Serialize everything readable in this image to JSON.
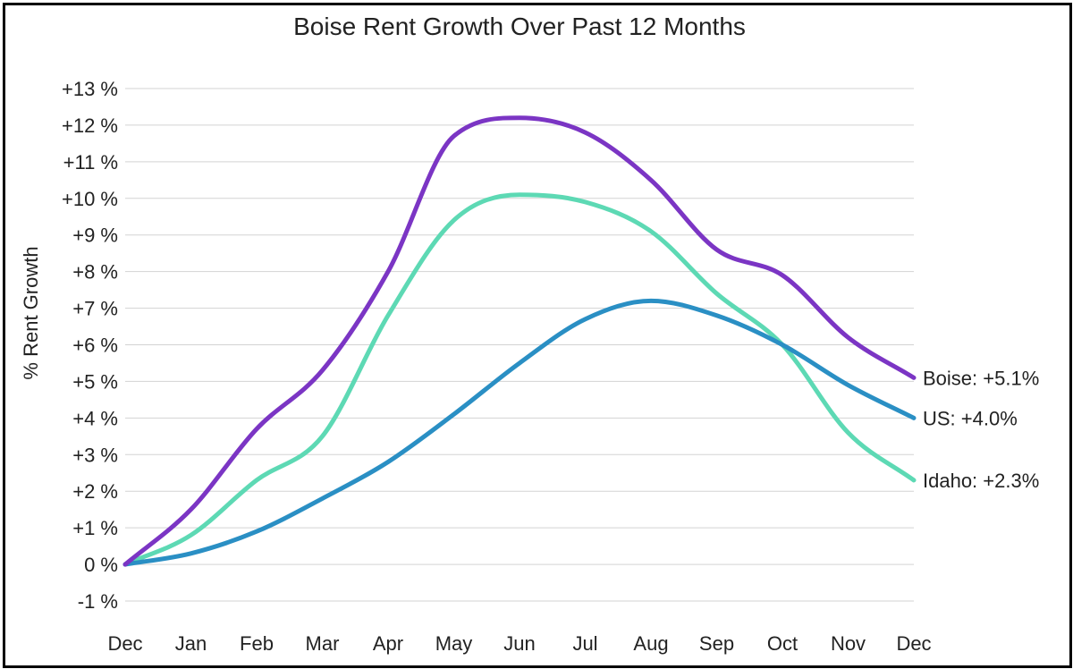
{
  "chart_data": {
    "type": "line",
    "title": "Boise Rent Growth Over Past 12 Months",
    "ylabel": "% Rent Growth",
    "xlabel": "",
    "categories": [
      "Dec",
      "Jan",
      "Feb",
      "Mar",
      "Apr",
      "May",
      "Jun",
      "Jul",
      "Aug",
      "Sep",
      "Oct",
      "Nov",
      "Dec"
    ],
    "ylim": [
      -1,
      13
    ],
    "yticks": [
      {
        "value": 13,
        "label": "+13 %"
      },
      {
        "value": 12,
        "label": "+12 %"
      },
      {
        "value": 11,
        "label": "+11 %"
      },
      {
        "value": 10,
        "label": "+10 %"
      },
      {
        "value": 9,
        "label": "+9 %"
      },
      {
        "value": 8,
        "label": "+8 %"
      },
      {
        "value": 7,
        "label": "+7 %"
      },
      {
        "value": 6,
        "label": "+6 %"
      },
      {
        "value": 5,
        "label": "+5 %"
      },
      {
        "value": 4,
        "label": "+4 %"
      },
      {
        "value": 3,
        "label": "+3 %"
      },
      {
        "value": 2,
        "label": "+2 %"
      },
      {
        "value": 1,
        "label": "+1 %"
      },
      {
        "value": 0,
        "label": "0 %"
      },
      {
        "value": -1,
        "label": "-1 %"
      }
    ],
    "grid": true,
    "legend": "end-of-line labels",
    "series": [
      {
        "name": "Boise",
        "end_label": "Boise: +5.1%",
        "color": "#7b35c4",
        "values": [
          0,
          1.5,
          3.7,
          5.3,
          8.0,
          11.7,
          12.2,
          11.8,
          10.5,
          8.6,
          7.9,
          6.2,
          5.1
        ]
      },
      {
        "name": "US",
        "end_label": "US: +4.0%",
        "color": "#2a8fc4",
        "values": [
          0,
          0.3,
          0.9,
          1.8,
          2.8,
          4.1,
          5.5,
          6.7,
          7.2,
          6.8,
          6.0,
          4.9,
          4.0
        ]
      },
      {
        "name": "Idaho",
        "end_label": "Idaho: +2.3%",
        "color": "#5dd9b4",
        "values": [
          0,
          0.8,
          2.3,
          3.5,
          6.8,
          9.4,
          10.1,
          9.9,
          9.1,
          7.4,
          6.0,
          3.6,
          2.3
        ]
      }
    ]
  }
}
